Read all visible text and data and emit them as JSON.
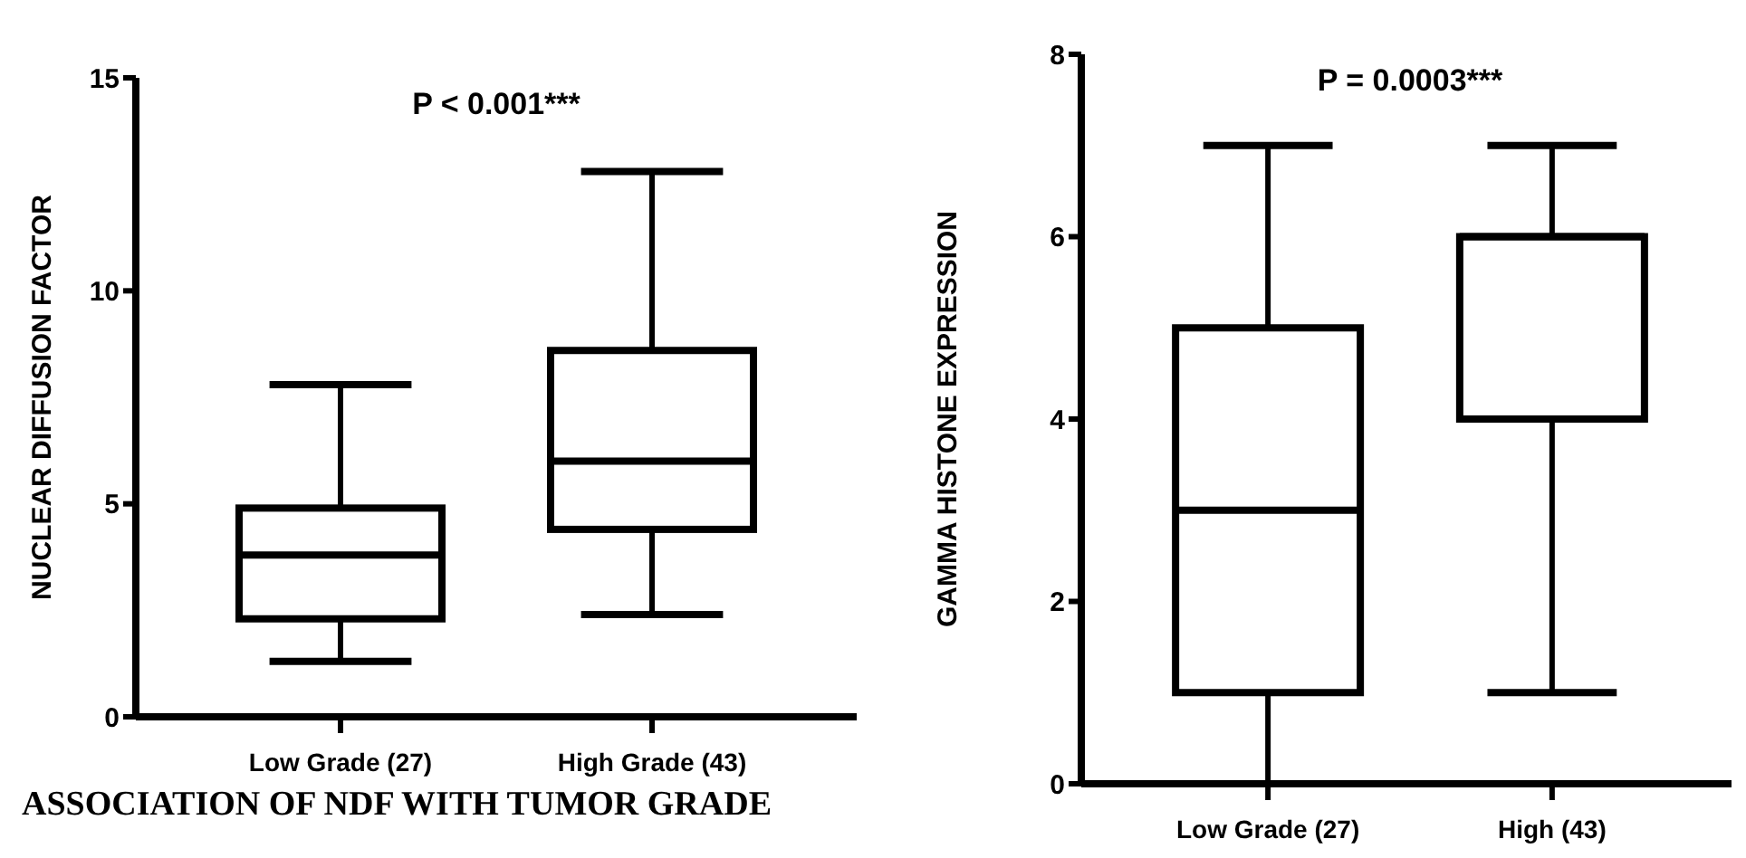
{
  "chart_data": [
    {
      "type": "box",
      "title": "P < 0.001***",
      "ylabel": "NUCLEAR DIFFUSION FACTOR",
      "categories": [
        "Low Grade (27)",
        "High Grade (43)"
      ],
      "boxes": [
        {
          "low": 1.3,
          "q1": 2.3,
          "median": 3.8,
          "q3": 4.9,
          "high": 7.8
        },
        {
          "low": 2.4,
          "q1": 4.4,
          "median": 6.0,
          "q3": 8.6,
          "high": 12.8
        }
      ],
      "ylim": [
        0,
        15
      ],
      "yticks": [
        0,
        5,
        10,
        15
      ],
      "grid": false,
      "annotations": [
        "ASSOCIATION OF NDF WITH TUMOR GRADE"
      ]
    },
    {
      "type": "box",
      "title": "P = 0.0003***",
      "ylabel": "GAMMA HISTONE EXPRESSION",
      "categories": [
        "Low Grade (27)",
        "High (43)"
      ],
      "boxes": [
        {
          "low": 0,
          "q1": 1,
          "median": 3,
          "q3": 5,
          "high": 7
        },
        {
          "low": 1,
          "q1": 4,
          "median": 6,
          "q3": 6,
          "high": 7
        }
      ],
      "ylim": [
        0,
        8
      ],
      "yticks": [
        0,
        2,
        4,
        6,
        8
      ],
      "grid": false
    }
  ]
}
